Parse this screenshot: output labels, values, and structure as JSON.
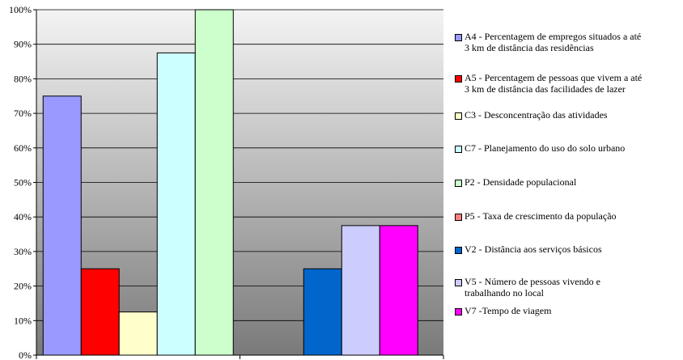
{
  "chart_data": {
    "type": "bar",
    "title": "",
    "xlabel": "",
    "ylabel": "",
    "ylim": [
      0,
      1
    ],
    "y_ticks": [
      "0%",
      "10%",
      "20%",
      "30%",
      "40%",
      "50%",
      "60%",
      "70%",
      "80%",
      "90%",
      "100%"
    ],
    "grid": true,
    "legend_position": "right",
    "plot_background": "gradient gray (dark at bottom, light at top)",
    "groups": 2,
    "series": [
      {
        "name": "A4 - Percentagem de empregos situados a até 3 km de distância das residências",
        "color": "#9999ff",
        "group": 1,
        "value": 0.75
      },
      {
        "name": "A5 - Percentagem de pessoas que vivem a até 3 km de distância das facilidades de lazer",
        "color": "#ff0000",
        "group": 1,
        "value": 0.25
      },
      {
        "name": "C3 - Desconcentração das atividades",
        "color": "#ffffcc",
        "group": 1,
        "value": 0.125
      },
      {
        "name": "C7 - Planejamento do uso do solo urbano",
        "color": "#ccffff",
        "group": 1,
        "value": 0.875
      },
      {
        "name": "P2 - Densidade populacional",
        "color": "#ccffcc",
        "group": 1,
        "value": 1.0
      },
      {
        "name": "P5 - Taxa de crescimento da população",
        "color": "#ff8080",
        "group": 2,
        "value": 0
      },
      {
        "name": "V2 - Distância aos serviços básicos",
        "color": "#0066cc",
        "group": 2,
        "value": 0.25
      },
      {
        "name": "V5 - Número de pessoas vivendo e trabalhando no local",
        "color": "#ccccff",
        "group": 2,
        "value": 0.375
      },
      {
        "name": "V7 -Tempo de viagem",
        "color": "#ff00ff",
        "group": 2,
        "value": 0.375
      }
    ],
    "legend_lines": [
      [
        "A4 - Percentagem de empregos situados a até",
        "3 km de distância das residências"
      ],
      [
        "A5 - Percentagem de pessoas que vivem a até",
        "3 km de distância das facilidades de lazer"
      ],
      [
        "C3 - Desconcentração das atividades"
      ],
      [
        "C7 - Planejamento do uso do solo urbano"
      ],
      [
        "P2 - Densidade populacional"
      ],
      [
        "P5 - Taxa de crescimento da população"
      ],
      [
        "V2 - Distância aos serviços básicos"
      ],
      [
        "V5 - Número de pessoas vivendo e",
        "trabalhando no local"
      ],
      [
        "V7 -Tempo de viagem"
      ]
    ]
  }
}
